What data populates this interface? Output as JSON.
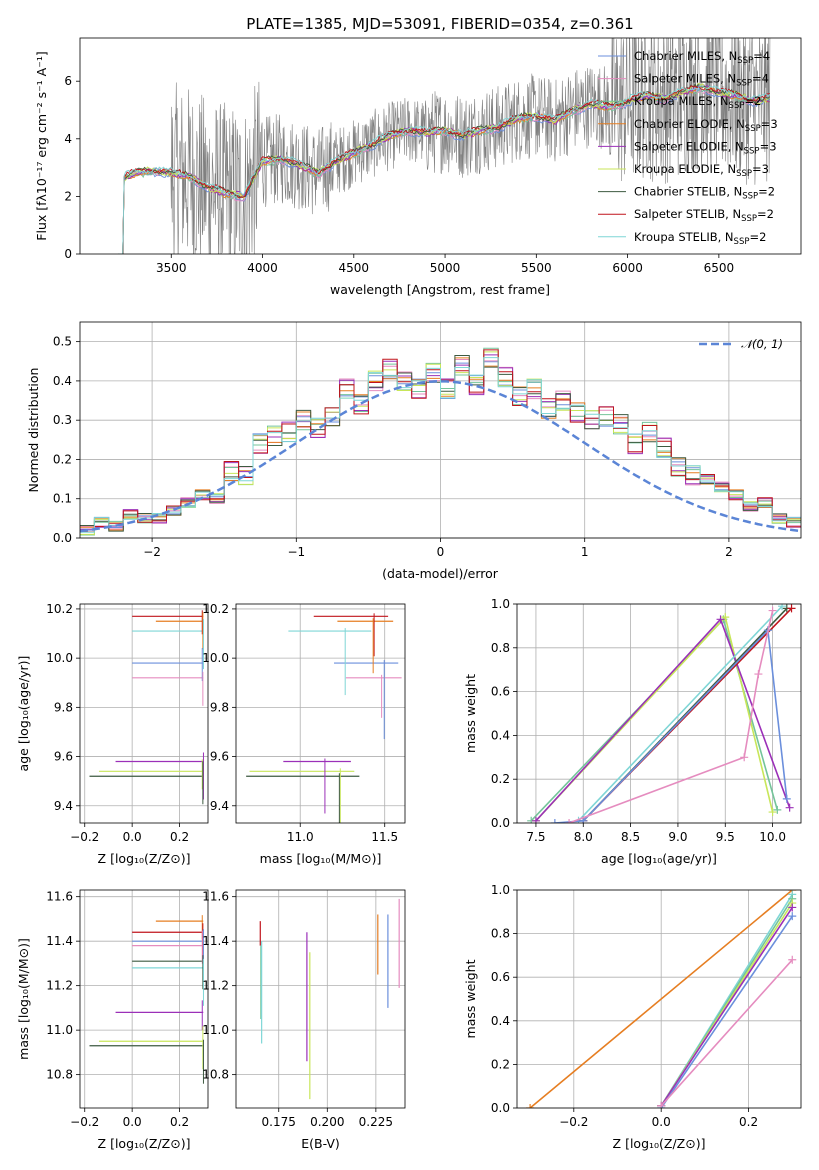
{
  "chart_data": [
    {
      "id": "spectrum",
      "type": "line",
      "title": "PLATE=1385, MJD=53091, FIBERID=0354, z=0.361",
      "xlabel": "wavelength [Angstrom, rest frame]",
      "ylabel": "Flux [fλ10⁻¹⁷ erg cm⁻² s⁻¹ A⁻¹]",
      "xlim": [
        3000,
        6950
      ],
      "ylim": [
        0,
        7.5
      ],
      "xticks": [
        3500,
        4000,
        4500,
        5000,
        5500,
        6000,
        6500
      ],
      "yticks": [
        0,
        2,
        4,
        6
      ],
      "grid": false,
      "legend_position": "top-right",
      "continuum": [
        [
          3230,
          2.6
        ],
        [
          3300,
          2.8
        ],
        [
          3400,
          2.9
        ],
        [
          3500,
          2.8
        ],
        [
          3600,
          2.7
        ],
        [
          3700,
          2.3
        ],
        [
          3800,
          2.1
        ],
        [
          3900,
          2.0
        ],
        [
          4000,
          3.2
        ],
        [
          4100,
          3.3
        ],
        [
          4200,
          3.1
        ],
        [
          4300,
          2.8
        ],
        [
          4400,
          3.2
        ],
        [
          4500,
          3.5
        ],
        [
          4600,
          3.8
        ],
        [
          4700,
          4.1
        ],
        [
          4800,
          4.3
        ],
        [
          4900,
          4.2
        ],
        [
          5000,
          4.3
        ],
        [
          5100,
          4.1
        ],
        [
          5200,
          4.3
        ],
        [
          5300,
          4.4
        ],
        [
          5400,
          4.7
        ],
        [
          5500,
          4.8
        ],
        [
          5600,
          4.6
        ],
        [
          5700,
          5.0
        ],
        [
          5800,
          5.2
        ],
        [
          5900,
          5.1
        ],
        [
          6000,
          5.3
        ],
        [
          6100,
          5.5
        ],
        [
          6200,
          5.4
        ],
        [
          6300,
          5.6
        ],
        [
          6400,
          5.8
        ],
        [
          6500,
          5.6
        ],
        [
          6600,
          5.5
        ],
        [
          6700,
          5.3
        ],
        [
          6780,
          5.4
        ]
      ],
      "series": [
        {
          "name": "Chabrier MILES, N_SSP=4",
          "sub_pre": "Chabrier MILES, N",
          "sub": "SSP",
          "sub_post": "=4",
          "color": "#6b8fdc"
        },
        {
          "name": "Salpeter MILES, N_SSP=4",
          "sub_pre": "Salpeter MILES, N",
          "sub": "SSP",
          "sub_post": "=4",
          "color": "#e58cbf"
        },
        {
          "name": "Kroupa MILES, N_SSP=2",
          "sub_pre": "Kroupa MILES, N",
          "sub": "SSP",
          "sub_post": "=2",
          "color": "#74c49a"
        },
        {
          "name": "Chabrier ELODIE, N_SSP=3",
          "sub_pre": "Chabrier ELODIE, N",
          "sub": "SSP",
          "sub_post": "=3",
          "color": "#e67e22"
        },
        {
          "name": "Salpeter ELODIE, N_SSP=3",
          "sub_pre": "Salpeter ELODIE, N",
          "sub": "SSP",
          "sub_post": "=3",
          "color": "#9b30b8"
        },
        {
          "name": "Kroupa ELODIE, N_SSP=3",
          "sub_pre": "Kroupa ELODIE, N",
          "sub": "SSP",
          "sub_post": "=3",
          "color": "#c8e65a"
        },
        {
          "name": "Chabrier STELIB, N_SSP=2",
          "sub_pre": "Chabrier STELIB, N",
          "sub": "SSP",
          "sub_post": "=2",
          "color": "#3d5a40"
        },
        {
          "name": "Salpeter STELIB, N_SSP=2",
          "sub_pre": "Salpeter STELIB, N",
          "sub": "SSP",
          "sub_post": "=2",
          "color": "#c0141c"
        },
        {
          "name": "Kroupa STELIB, N_SSP=2",
          "sub_pre": "Kroupa STELIB, N",
          "sub": "SSP",
          "sub_post": "=2",
          "color": "#7fd6d6"
        }
      ]
    },
    {
      "id": "residuals",
      "type": "line",
      "xlabel": "(data-model)/error",
      "ylabel": "Normed distribution",
      "xlim": [
        -2.5,
        2.5
      ],
      "ylim": [
        0,
        0.55
      ],
      "xticks": [
        -2,
        -1,
        0,
        1,
        2
      ],
      "yticks": [
        0.0,
        0.1,
        0.2,
        0.3,
        0.4,
        0.5
      ],
      "grid": true,
      "legend_position": "top-right",
      "legend_label": "𝒩(0, 1)",
      "bin_width": 0.1,
      "hist": [
        0.02,
        0.04,
        0.03,
        0.06,
        0.05,
        0.05,
        0.07,
        0.09,
        0.11,
        0.1,
        0.17,
        0.16,
        0.24,
        0.26,
        0.27,
        0.3,
        0.28,
        0.31,
        0.38,
        0.34,
        0.4,
        0.43,
        0.4,
        0.38,
        0.42,
        0.38,
        0.44,
        0.39,
        0.46,
        0.41,
        0.36,
        0.38,
        0.33,
        0.35,
        0.32,
        0.3,
        0.31,
        0.29,
        0.24,
        0.27,
        0.23,
        0.18,
        0.16,
        0.15,
        0.13,
        0.11,
        0.08,
        0.09,
        0.05,
        0.04
      ],
      "gaussian_color": "#5b85d6"
    },
    {
      "id": "age-vs-Z",
      "type": "scatter",
      "xlabel": "Z [log₁₀(Z/Z⊙)]",
      "ylabel": "age  [log₁₀(age/yr)]",
      "xlim": [
        -0.22,
        0.32
      ],
      "ylim": [
        9.33,
        10.22
      ],
      "xticks": [
        -0.2,
        0.0,
        0.2
      ],
      "yticks": [
        9.4,
        9.6,
        9.8,
        10.0,
        10.2
      ],
      "grid": true,
      "segments": [
        {
          "color": "#c0141c",
          "y": 10.17,
          "x0": 0.0,
          "x1": 0.3
        },
        {
          "color": "#e67e22",
          "y": 10.15,
          "x0": 0.1,
          "x1": 0.3
        },
        {
          "color": "#7fd6d6",
          "y": 10.11,
          "x0": 0.0,
          "x1": 0.3
        },
        {
          "color": "#6b8fdc",
          "y": 9.98,
          "x0": 0.0,
          "x1": 0.3
        },
        {
          "color": "#e58cbf",
          "y": 9.92,
          "x0": 0.0,
          "x1": 0.3
        },
        {
          "color": "#9b30b8",
          "y": 9.58,
          "x0": -0.07,
          "x1": 0.3
        },
        {
          "color": "#c8e65a",
          "y": 9.54,
          "x0": -0.14,
          "x1": 0.3
        },
        {
          "color": "#3d5a40",
          "y": 9.52,
          "x0": -0.18,
          "x1": 0.3
        }
      ]
    },
    {
      "id": "age-vs-mass",
      "type": "scatter",
      "xlabel": "mass [log₁₀(M/M⊙)]",
      "ylabel": "",
      "xlim": [
        10.62,
        11.62
      ],
      "ylim": [
        9.33,
        10.22
      ],
      "xticks": [
        11.0,
        11.5
      ],
      "yticks": [
        9.4,
        9.6,
        9.8,
        10.0,
        10.2
      ],
      "grid": true,
      "segments": [
        {
          "color": "#c0141c",
          "y": 10.17,
          "x0": 11.08,
          "x1": 11.52
        },
        {
          "color": "#e67e22",
          "y": 10.15,
          "x0": 11.22,
          "x1": 11.55
        },
        {
          "color": "#7fd6d6",
          "y": 10.11,
          "x0": 10.93,
          "x1": 11.42
        },
        {
          "color": "#6b8fdc",
          "y": 9.98,
          "x0": 11.2,
          "x1": 11.58
        },
        {
          "color": "#e58cbf",
          "y": 9.92,
          "x0": 11.27,
          "x1": 11.6
        },
        {
          "color": "#9b30b8",
          "y": 9.58,
          "x0": 10.9,
          "x1": 11.3
        },
        {
          "color": "#c8e65a",
          "y": 9.54,
          "x0": 10.7,
          "x1": 11.32
        },
        {
          "color": "#3d5a40",
          "y": 9.52,
          "x0": 10.68,
          "x1": 11.35
        }
      ]
    },
    {
      "id": "weight-vs-age",
      "type": "line",
      "xlabel": "age  [log₁₀(age/yr)]",
      "ylabel": "mass weight",
      "xlim": [
        7.3,
        10.3
      ],
      "ylim": [
        0.0,
        1.0
      ],
      "xticks": [
        7.5,
        8.0,
        8.5,
        9.0,
        9.5,
        10.0
      ],
      "yticks": [
        0.0,
        0.2,
        0.4,
        0.6,
        0.8,
        1.0
      ],
      "grid": true,
      "series": [
        {
          "color": "#74c49a",
          "points": [
            [
              7.45,
              0.01
            ],
            [
              9.48,
              0.93
            ],
            [
              10.05,
              0.06
            ]
          ]
        },
        {
          "color": "#c8e65a",
          "points": [
            [
              7.5,
              0.01
            ],
            [
              9.5,
              0.94
            ],
            [
              10.0,
              0.05
            ]
          ]
        },
        {
          "color": "#9b30b8",
          "points": [
            [
              7.5,
              0.01
            ],
            [
              9.45,
              0.93
            ],
            [
              10.18,
              0.07
            ]
          ]
        },
        {
          "color": "#7fd6d6",
          "points": [
            [
              7.95,
              0.01
            ],
            [
              10.1,
              0.99
            ]
          ]
        },
        {
          "color": "#3d5a40",
          "points": [
            [
              8.0,
              0.01
            ],
            [
              10.15,
              0.98
            ]
          ]
        },
        {
          "color": "#c0141c",
          "points": [
            [
              8.0,
              0.01
            ],
            [
              10.2,
              0.98
            ]
          ]
        },
        {
          "color": "#6b8fdc",
          "points": [
            [
              7.7,
              0.0
            ],
            [
              8.0,
              0.01
            ],
            [
              9.95,
              0.88
            ],
            [
              10.15,
              0.11
            ]
          ]
        },
        {
          "color": "#e58cbf",
          "points": [
            [
              7.85,
              0.0
            ],
            [
              9.7,
              0.3
            ],
            [
              9.85,
              0.68
            ],
            [
              10.0,
              0.97
            ]
          ]
        }
      ]
    },
    {
      "id": "mass-vs-Z",
      "type": "scatter",
      "xlabel": "Z [log₁₀(Z/Z⊙)]",
      "ylabel": "mass [log₁₀(M/M⊙)]",
      "xlim": [
        -0.22,
        0.32
      ],
      "ylim": [
        10.65,
        11.63
      ],
      "xticks": [
        -0.2,
        0.0,
        0.2
      ],
      "yticks": [
        10.8,
        11.0,
        11.2,
        11.4,
        11.6
      ],
      "grid": true,
      "segments": [
        {
          "color": "#e67e22",
          "y": 11.49,
          "x0": 0.1,
          "x1": 0.3
        },
        {
          "color": "#c0141c",
          "y": 11.44,
          "x0": 0.0,
          "x1": 0.3
        },
        {
          "color": "#6b8fdc",
          "y": 11.4,
          "x0": 0.0,
          "x1": 0.3
        },
        {
          "color": "#e58cbf",
          "y": 11.38,
          "x0": 0.0,
          "x1": 0.3
        },
        {
          "color": "#3d5a40",
          "y": 11.31,
          "x0": 0.0,
          "x1": 0.3
        },
        {
          "color": "#7fd6d6",
          "y": 11.28,
          "x0": 0.0,
          "x1": 0.3
        },
        {
          "color": "#9b30b8",
          "y": 11.08,
          "x0": -0.07,
          "x1": 0.3
        },
        {
          "color": "#c8e65a",
          "y": 10.95,
          "x0": -0.14,
          "x1": 0.3
        },
        {
          "color": "#3d5a40",
          "y": 10.93,
          "x0": -0.18,
          "x1": 0.3
        }
      ]
    },
    {
      "id": "mass-vs-ebv",
      "type": "scatter",
      "xlabel": "E(B-V)",
      "ylabel": "",
      "xlim": [
        0.153,
        0.24
      ],
      "ylim": [
        10.65,
        11.63
      ],
      "xticks": [
        0.175,
        0.2,
        0.225
      ],
      "xtick_labels": [
        "0.175",
        "0.200",
        "0.225"
      ],
      "yticks": [
        10.8,
        11.0,
        11.2,
        11.4,
        11.6
      ],
      "grid": true,
      "errorbars": [
        {
          "color": "#c0141c",
          "x": 0.1655,
          "y0": 11.38,
          "y1": 11.49
        },
        {
          "color": "#74c49a",
          "x": 0.1658,
          "y0": 11.05,
          "y1": 11.38
        },
        {
          "color": "#7fd6d6",
          "x": 0.1662,
          "y0": 10.94,
          "y1": 11.4
        },
        {
          "color": "#9b30b8",
          "x": 0.1895,
          "y0": 10.86,
          "y1": 11.44
        },
        {
          "color": "#c8e65a",
          "x": 0.191,
          "y0": 10.69,
          "y1": 11.35
        },
        {
          "color": "#e67e22",
          "x": 0.226,
          "y0": 11.25,
          "y1": 11.52
        },
        {
          "color": "#6b8fdc",
          "x": 0.2312,
          "y0": 11.1,
          "y1": 11.52
        },
        {
          "color": "#e58cbf",
          "x": 0.237,
          "y0": 11.19,
          "y1": 11.59
        }
      ]
    },
    {
      "id": "weight-vs-Z",
      "type": "line",
      "xlabel": "Z [log₁₀(Z/Z⊙)]",
      "ylabel": "mass weight",
      "xlim": [
        -0.33,
        0.32
      ],
      "ylim": [
        0.0,
        1.0
      ],
      "xticks": [
        -0.2,
        0.0,
        0.2
      ],
      "yticks": [
        0.0,
        0.2,
        0.4,
        0.6,
        0.8,
        1.0
      ],
      "grid": true,
      "series": [
        {
          "color": "#e67e22",
          "points": [
            [
              -0.3,
              0.0
            ],
            [
              0.3,
              1.0
            ]
          ]
        },
        {
          "color": "#7fd6d6",
          "points": [
            [
              0.0,
              0.01
            ],
            [
              0.3,
              0.98
            ]
          ]
        },
        {
          "color": "#74c49a",
          "points": [
            [
              0.0,
              0.01
            ],
            [
              0.3,
              0.96
            ]
          ]
        },
        {
          "color": "#c8e65a",
          "points": [
            [
              0.0,
              0.01
            ],
            [
              0.3,
              0.94
            ]
          ]
        },
        {
          "color": "#9b30b8",
          "points": [
            [
              0.0,
              0.01
            ],
            [
              0.3,
              0.92
            ]
          ]
        },
        {
          "color": "#6b8fdc",
          "points": [
            [
              0.0,
              0.0
            ],
            [
              0.3,
              0.88
            ]
          ]
        },
        {
          "color": "#e58cbf",
          "points": [
            [
              0.0,
              0.01
            ],
            [
              0.3,
              0.68
            ]
          ]
        }
      ]
    }
  ]
}
